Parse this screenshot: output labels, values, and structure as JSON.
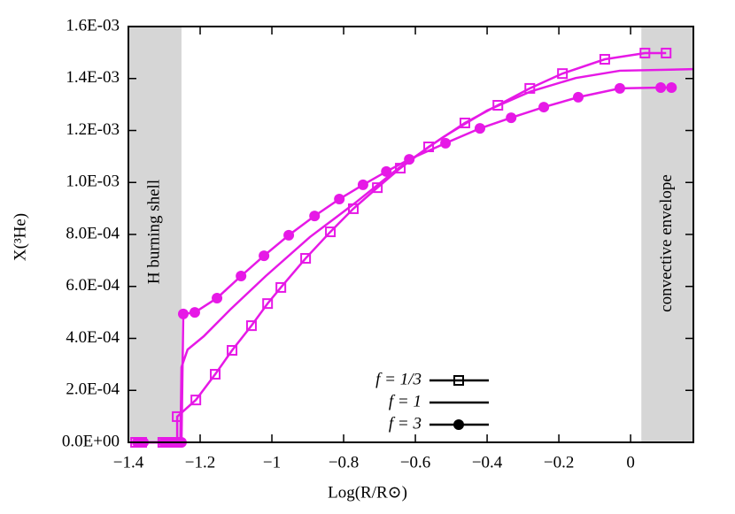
{
  "chart_data": {
    "type": "line",
    "xlabel": "Log(R/R⊙)",
    "ylabel": "X(³He)",
    "xlim": [
      -1.4,
      0.175
    ],
    "ylim": [
      0,
      0.0016
    ],
    "xticks": [
      {
        "value": -1.4,
        "label": "−1.4"
      },
      {
        "value": -1.2,
        "label": "−1.2"
      },
      {
        "value": -1,
        "label": "−1"
      },
      {
        "value": -0.8,
        "label": "−0.8"
      },
      {
        "value": -0.6,
        "label": "−0.6"
      },
      {
        "value": -0.4,
        "label": "−0.4"
      },
      {
        "value": -0.2,
        "label": "−0.2"
      },
      0
    ],
    "yticks": [
      {
        "value": 0,
        "label": "0.0E+00"
      },
      {
        "value": 0.0002,
        "label": "2.0E-04"
      },
      {
        "value": 0.0004,
        "label": "4.0E-04"
      },
      {
        "value": 0.0006,
        "label": "6.0E-04"
      },
      {
        "value": 0.0008,
        "label": "8.0E-04"
      },
      {
        "value": 0.001,
        "label": "1.0E-03"
      },
      {
        "value": 0.0012,
        "label": "1.2E-03"
      },
      {
        "value": 0.0014,
        "label": "1.4E-03"
      },
      {
        "value": 0.0016,
        "label": "1.6E-03"
      }
    ],
    "regions": [
      {
        "label": "H burning shell",
        "x": [
          -1.4,
          -1.252
        ],
        "color": "#d6d6d6"
      },
      {
        "label": "convective envelope",
        "x": [
          0.03,
          0.175
        ],
        "color": "#d6d6d6"
      }
    ],
    "legend": "lower center",
    "series": [
      {
        "name": "f = 1/3",
        "color": "#e619e6",
        "marker": "square-open",
        "x": [
          -1.38,
          -1.363,
          -1.304,
          -1.289,
          -1.272,
          -1.264,
          -1.264,
          -1.212,
          -1.158,
          -1.111,
          -1.057,
          -1.012,
          -0.975,
          -0.906,
          -0.837,
          -0.773,
          -0.706,
          -0.642,
          -0.563,
          -0.462,
          -0.37,
          -0.281,
          -0.19,
          -0.072,
          0.04,
          0.099
        ],
        "values": [
          0,
          0,
          0,
          0,
          0,
          0,
          9.9e-05,
          0.000163,
          0.000262,
          0.000354,
          0.000449,
          0.000534,
          0.000596,
          0.000708,
          0.00081,
          0.000899,
          0.00098,
          0.001055,
          0.001137,
          0.001229,
          0.001297,
          0.001362,
          0.001419,
          0.001474,
          0.001498,
          0.001498
        ]
      },
      {
        "name": "f = 1",
        "color": "#e619e6",
        "marker": "none",
        "x": [
          -1.385,
          -1.255,
          -1.252,
          -1.235,
          -1.19,
          -1.116,
          -1.017,
          -0.894,
          -0.77,
          -0.647,
          -0.523,
          -0.4,
          -0.277,
          -0.153,
          -0.03,
          0.175
        ],
        "values": [
          0,
          0,
          0.000289,
          0.000357,
          0.000408,
          0.000511,
          0.00064,
          0.00079,
          0.000919,
          0.001055,
          0.001174,
          0.001277,
          0.001351,
          0.001402,
          0.00143,
          0.001436
        ]
      },
      {
        "name": "f = 3",
        "color": "#e619e6",
        "marker": "circle",
        "x": [
          -1.375,
          -1.358,
          -1.301,
          -1.284,
          -1.269,
          -1.252,
          -1.247,
          -1.215,
          -1.153,
          -1.086,
          -1.022,
          -0.953,
          -0.881,
          -0.812,
          -0.746,
          -0.681,
          -0.617,
          -0.516,
          -0.42,
          -0.333,
          -0.242,
          -0.146,
          -0.03,
          0.084,
          0.114
        ],
        "values": [
          0,
          0,
          0,
          0,
          0,
          0,
          0.000494,
          0.0005,
          0.000555,
          0.00064,
          0.000718,
          0.000797,
          0.000871,
          0.000936,
          0.000991,
          0.001042,
          0.001089,
          0.001151,
          0.001208,
          0.001249,
          0.00129,
          0.001328,
          0.001362,
          0.001365,
          0.001365
        ]
      }
    ]
  }
}
